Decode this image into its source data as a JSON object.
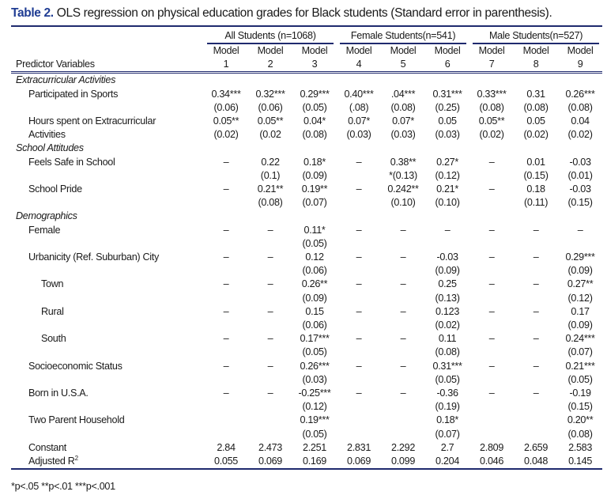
{
  "title": {
    "lead": "Table 2.",
    "text": " OLS regression on physical education grades for Black students (Standard error in parenthesis)."
  },
  "groups": [
    "All Students (n=1068)",
    "Female Students(n=541)",
    "Male Students(n=527)"
  ],
  "header": {
    "predictor_label": "Predictor Variables",
    "model_word": "Model",
    "model_numbers": [
      "1",
      "2",
      "3",
      "4",
      "5",
      "6",
      "7",
      "8",
      "9"
    ]
  },
  "rows": [
    {
      "type": "section",
      "label": "Extracurricular Activities"
    },
    {
      "label": "Participated in Sports",
      "indent": 1,
      "values": [
        "0.34***",
        "0.32***",
        "0.29***",
        "0.40***",
        ".04***",
        "0.31***",
        "0.33***",
        "0.31",
        "0.26***"
      ]
    },
    {
      "label": "",
      "indent": 1,
      "values": [
        "(0.06)",
        "(0.06)",
        "(0.05)",
        "(.08)",
        "(0.08)",
        "(0.25)",
        "(0.08)",
        "(0.08)",
        "(0.08)"
      ]
    },
    {
      "label": "Hours spent on Extracurricular",
      "indent": 1,
      "values": [
        "0.05**",
        "0.05**",
        "0.04*",
        "0.07*",
        "0.07*",
        "0.05",
        "0.05**",
        "0.05",
        "0.04"
      ]
    },
    {
      "label": "Activities",
      "indent": 1,
      "values": [
        "(0.02)",
        "(0.02",
        "(0.08)",
        "(0.03)",
        "(0.03)",
        "(0.03)",
        "(0.02)",
        "(0.02)",
        "(0.02)"
      ]
    },
    {
      "type": "section",
      "label": "School Attitudes"
    },
    {
      "label": "Feels Safe in School",
      "indent": 1,
      "values": [
        "–",
        "0.22",
        "0.18*",
        "–",
        "0.38**",
        "0.27*",
        "–",
        "0.01",
        "-0.03"
      ]
    },
    {
      "label": "",
      "indent": 1,
      "values": [
        "",
        "(0.1)",
        "(0.09)",
        "",
        "*(0.13)",
        "(0.12)",
        "",
        "(0.15)",
        "(0.01)"
      ]
    },
    {
      "label": "School Pride",
      "indent": 1,
      "values": [
        "–",
        "0.21**",
        "0.19**",
        "–",
        "0.242**",
        "0.21*",
        "–",
        "0.18",
        "-0.03"
      ]
    },
    {
      "label": "",
      "indent": 1,
      "values": [
        "",
        "(0.08)",
        "(0.07)",
        "",
        "(0.10)",
        "(0.10)",
        "",
        "(0.11)",
        "(0.15)"
      ]
    },
    {
      "type": "section",
      "label": "Demographics"
    },
    {
      "label": "Female",
      "indent": 1,
      "values": [
        "–",
        "–",
        "0.11*",
        "–",
        "–",
        "–",
        "–",
        "–",
        "–"
      ]
    },
    {
      "label": "",
      "indent": 1,
      "values": [
        "",
        "",
        "(0.05)",
        "",
        "",
        "",
        "",
        "",
        ""
      ]
    },
    {
      "label": "Urbanicity (Ref. Suburban) City",
      "indent": 1,
      "values": [
        "–",
        "–",
        "0.12",
        "–",
        "–",
        "-0.03",
        "–",
        "–",
        "0.29***"
      ]
    },
    {
      "label": "",
      "indent": 1,
      "values": [
        "",
        "",
        "(0.06)",
        "",
        "",
        "(0.09)",
        "",
        "",
        "(0.09)"
      ]
    },
    {
      "label": "Town",
      "indent": 2,
      "values": [
        "–",
        "–",
        "0.26**",
        "–",
        "–",
        "0.25",
        "–",
        "–",
        "0.27**"
      ]
    },
    {
      "label": "",
      "indent": 2,
      "values": [
        "",
        "",
        "(0.09)",
        "",
        "",
        "(0.13)",
        "",
        "",
        "(0.12)"
      ]
    },
    {
      "label": "Rural",
      "indent": 2,
      "values": [
        "–",
        "–",
        "0.15",
        "–",
        "–",
        "0.123",
        "–",
        "–",
        "0.17"
      ]
    },
    {
      "label": "",
      "indent": 2,
      "values": [
        "",
        "",
        "(0.06)",
        "",
        "",
        "(0.02)",
        "",
        "",
        "(0.09)"
      ]
    },
    {
      "label": "South",
      "indent": 2,
      "values": [
        "–",
        "–",
        "0.17***",
        "–",
        "–",
        "0.11",
        "–",
        "–",
        "0.24***"
      ]
    },
    {
      "label": "",
      "indent": 2,
      "values": [
        "",
        "",
        "(0.05)",
        "",
        "",
        "(0.08)",
        "",
        "",
        "(0.07)"
      ]
    },
    {
      "label": "Socioeconomic Status",
      "indent": 1,
      "values": [
        "–",
        "–",
        "0.26***",
        "–",
        "–",
        "0.31***",
        "–",
        "–",
        "0.21***"
      ]
    },
    {
      "label": "",
      "indent": 1,
      "values": [
        "",
        "",
        "(0.03)",
        "",
        "",
        "(0.05)",
        "",
        "",
        "(0.05)"
      ]
    },
    {
      "label": "Born in U.S.A.",
      "indent": 1,
      "values": [
        "–",
        "–",
        "-0.25***",
        "–",
        "–",
        "-0.36",
        "–",
        "–",
        "-0.19"
      ]
    },
    {
      "label": "",
      "indent": 1,
      "values": [
        "",
        "",
        "(0.12)",
        "",
        "",
        "(0.19)",
        "",
        "",
        "(0.15)"
      ]
    },
    {
      "label": "Two Parent Household",
      "indent": 1,
      "values": [
        "",
        "",
        "0.19***",
        "",
        "",
        "0.18*",
        "",
        "",
        "0.20**"
      ]
    },
    {
      "label": "",
      "indent": 1,
      "values": [
        "",
        "",
        "(0.05)",
        "",
        "",
        "(0.07)",
        "",
        "",
        "(0.08)"
      ]
    },
    {
      "label": "Constant",
      "indent": 1,
      "values": [
        "2.84",
        "2.473",
        "2.251",
        "2.831",
        "2.292",
        "2.7",
        "2.809",
        "2.659",
        "2.583"
      ]
    },
    {
      "label": "Adjusted R",
      "sup": "2",
      "indent": 1,
      "values": [
        "0.055",
        "0.069",
        "0.169",
        "0.069",
        "0.099",
        "0.204",
        "0.046",
        "0.048",
        "0.145"
      ]
    }
  ],
  "footnote": "*p<.05 **p<.01 ***p<.001",
  "colors": {
    "accent": "#1f3c93",
    "rule": "#1f2a6e"
  }
}
